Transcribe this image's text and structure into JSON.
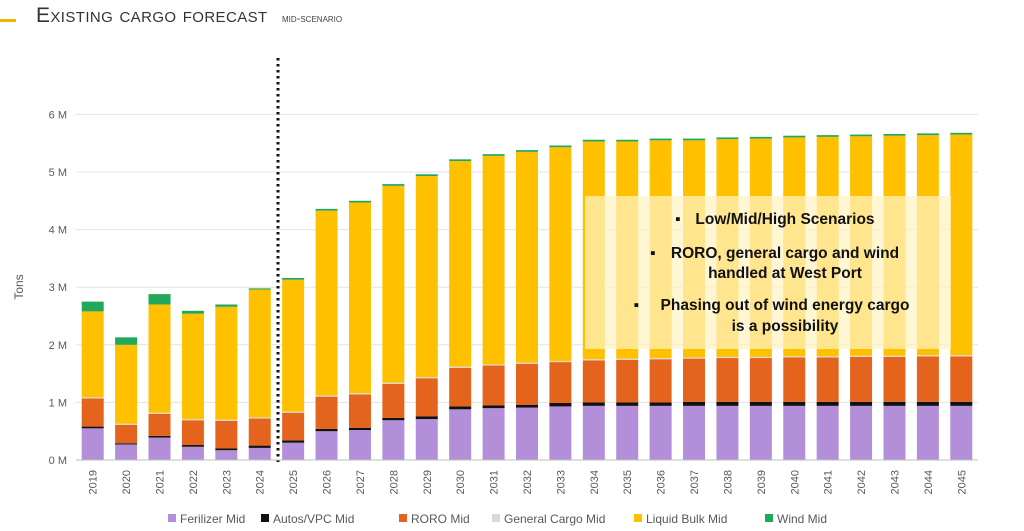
{
  "header": {
    "title": "Existing cargo forecast",
    "subtitle": "mid-scenario"
  },
  "chart_data": {
    "type": "bar",
    "stacked": true,
    "ylabel": "Tons",
    "ylim": [
      0,
      6.5
    ],
    "yticks": [
      {
        "value": 0,
        "label": "0 M"
      },
      {
        "value": 1,
        "label": "1 M"
      },
      {
        "value": 2,
        "label": "2 M"
      },
      {
        "value": 3,
        "label": "3 M"
      },
      {
        "value": 4,
        "label": "4 M"
      },
      {
        "value": 5,
        "label": "5 M"
      },
      {
        "value": 6,
        "label": "6 M"
      }
    ],
    "categories": [
      "2019",
      "2020",
      "2021",
      "2022",
      "2023",
      "2024",
      "2025",
      "2026",
      "2027",
      "2028",
      "2029",
      "2030",
      "2031",
      "2032",
      "2033",
      "2034",
      "2035",
      "2036",
      "2037",
      "2038",
      "2039",
      "2040",
      "2041",
      "2042",
      "2043",
      "2044",
      "2045"
    ],
    "forecast_divider_after": "2024",
    "legend_position": "bottom",
    "series": [
      {
        "name": "Ferilizer Mid",
        "color": "#b28fd8",
        "values": [
          0.55,
          0.27,
          0.39,
          0.23,
          0.17,
          0.21,
          0.3,
          0.5,
          0.52,
          0.69,
          0.71,
          0.88,
          0.9,
          0.91,
          0.93,
          0.94,
          0.94,
          0.94,
          0.94,
          0.94,
          0.94,
          0.94,
          0.94,
          0.94,
          0.94,
          0.94,
          0.94
        ]
      },
      {
        "name": "Autos/VPC Mid",
        "color": "#111111",
        "values": [
          0.03,
          0.02,
          0.03,
          0.03,
          0.03,
          0.04,
          0.04,
          0.04,
          0.04,
          0.04,
          0.05,
          0.05,
          0.05,
          0.05,
          0.06,
          0.06,
          0.06,
          0.06,
          0.07,
          0.07,
          0.07,
          0.07,
          0.07,
          0.07,
          0.07,
          0.07,
          0.07
        ]
      },
      {
        "name": "RORO Mid",
        "color": "#e4641e",
        "values": [
          0.49,
          0.32,
          0.38,
          0.43,
          0.48,
          0.47,
          0.48,
          0.56,
          0.58,
          0.59,
          0.66,
          0.67,
          0.69,
          0.71,
          0.71,
          0.73,
          0.74,
          0.75,
          0.75,
          0.76,
          0.76,
          0.77,
          0.77,
          0.78,
          0.78,
          0.79,
          0.79
        ]
      },
      {
        "name": "General Cargo Mid",
        "color": "#d9d9d9",
        "values": [
          0.02,
          0.02,
          0.02,
          0.02,
          0.02,
          0.02,
          0.02,
          0.02,
          0.02,
          0.02,
          0.02,
          0.02,
          0.02,
          0.02,
          0.02,
          0.02,
          0.02,
          0.02,
          0.02,
          0.02,
          0.02,
          0.02,
          0.02,
          0.02,
          0.02,
          0.02,
          0.02
        ]
      },
      {
        "name": "Liquid Bulk Mid",
        "color": "#ffc000",
        "values": [
          1.49,
          1.37,
          1.88,
          1.83,
          1.96,
          2.22,
          2.29,
          3.21,
          3.31,
          3.42,
          3.49,
          3.57,
          3.62,
          3.66,
          3.71,
          3.78,
          3.77,
          3.78,
          3.77,
          3.78,
          3.79,
          3.8,
          3.81,
          3.81,
          3.82,
          3.82,
          3.83
        ]
      },
      {
        "name": "Wind Mid",
        "color": "#21a85b",
        "values": [
          0.17,
          0.13,
          0.18,
          0.05,
          0.04,
          0.02,
          0.03,
          0.03,
          0.03,
          0.03,
          0.03,
          0.03,
          0.03,
          0.03,
          0.03,
          0.03,
          0.03,
          0.03,
          0.03,
          0.03,
          0.03,
          0.03,
          0.03,
          0.03,
          0.03,
          0.03,
          0.03
        ]
      }
    ],
    "annotations": [
      {
        "bullet": "▪",
        "lines": [
          "Low/Mid/High Scenarios"
        ]
      },
      {
        "bullet": "▪",
        "lines": [
          "RORO, general cargo and wind",
          "handled at West Port"
        ]
      },
      {
        "bullet": "▪",
        "lines": [
          "Phasing out of wind energy cargo",
          "is a possibility"
        ]
      }
    ]
  }
}
